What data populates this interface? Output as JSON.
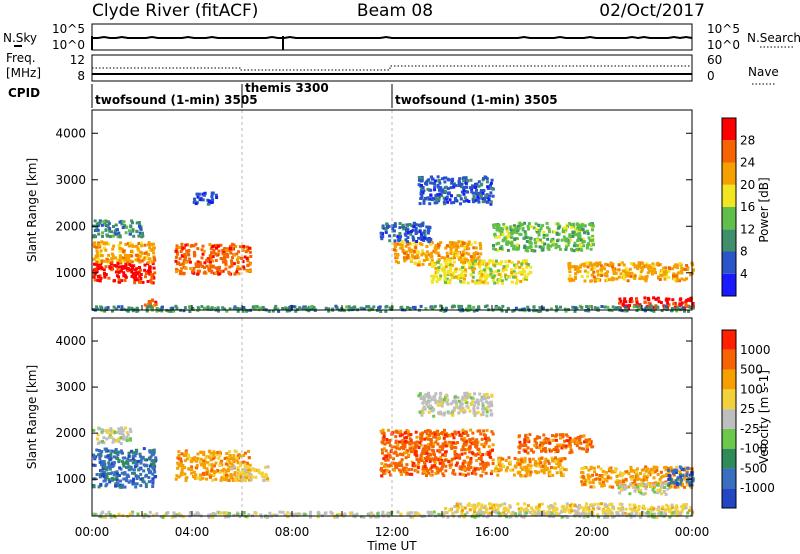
{
  "header": {
    "station": "Clyde River (fitACF)",
    "beam": "Beam 08",
    "date": "02/Oct/2017"
  },
  "nsky_panel": {
    "left_label": "N.Sky",
    "left_ticks": [
      "10^5",
      "10^0"
    ],
    "right_ticks": [
      "10^5",
      "10^0"
    ],
    "right_label": "N.Search"
  },
  "freq_panel": {
    "left_label_1": "Freq.",
    "left_label_2": "[MHz]",
    "left_ticks": [
      "12",
      "8"
    ],
    "right_ticks": [
      "60",
      "0"
    ],
    "right_label": "Nave"
  },
  "cpid": {
    "label": "CPID",
    "segments": [
      {
        "label": "twofsound (1-min) 3505",
        "start_hour": 0
      },
      {
        "label": "themis 3300",
        "start_hour": 6
      },
      {
        "label": "twofsound (1-min) 3505",
        "start_hour": 12
      }
    ]
  },
  "colors": {
    "power_scale": [
      "#1a1aff",
      "#2a55c8",
      "#3f8f6a",
      "#5fbf4a",
      "#f2e620",
      "#f5a000",
      "#f56400",
      "#ff0000"
    ],
    "velocity_scale": [
      "#2347c4",
      "#3a6fc0",
      "#2f8c5a",
      "#6cc84a",
      "#bebebe",
      "#f2d23a",
      "#f5a000",
      "#f56400",
      "#ff2000"
    ]
  },
  "chart_data": [
    {
      "type": "heatmap",
      "name": "power",
      "ylabel": "Slant Range [km]",
      "y_ticks": [
        1000,
        2000,
        3000,
        4000
      ],
      "ylim": [
        200,
        4500
      ],
      "xlim": [
        0,
        24
      ],
      "colorbar_label": "Power [dB]",
      "colorbar_ticks": [
        "4",
        "8",
        "12",
        "16",
        "20",
        "24",
        "28"
      ],
      "bands": [
        {
          "t0": 0.0,
          "t1": 2.5,
          "r0": 800,
          "r1": 1250,
          "level": 7
        },
        {
          "t0": 0.0,
          "t1": 2.5,
          "r0": 1250,
          "r1": 1700,
          "level": 5
        },
        {
          "t0": 0.0,
          "t1": 2.0,
          "r0": 1800,
          "r1": 2150,
          "level": 2
        },
        {
          "t0": 3.3,
          "t1": 6.3,
          "r0": 1000,
          "r1": 1650,
          "level": 6
        },
        {
          "t0": 2.0,
          "t1": 2.6,
          "r0": 250,
          "r1": 450,
          "level": 6
        },
        {
          "t0": 4.0,
          "t1": 5.0,
          "r0": 2500,
          "r1": 2750,
          "level": 1
        },
        {
          "t0": 12.0,
          "t1": 15.5,
          "r0": 1200,
          "r1": 1700,
          "level": 5
        },
        {
          "t0": 11.5,
          "t1": 13.5,
          "r0": 1700,
          "r1": 2100,
          "level": 1
        },
        {
          "t0": 13.5,
          "t1": 17.5,
          "r0": 800,
          "r1": 1300,
          "level": 4
        },
        {
          "t0": 16.0,
          "t1": 20.0,
          "r0": 1500,
          "r1": 2100,
          "level": 3
        },
        {
          "t0": 19.0,
          "t1": 24.0,
          "r0": 850,
          "r1": 1250,
          "level": 5
        },
        {
          "t0": 13.0,
          "t1": 16.0,
          "r0": 2500,
          "r1": 3100,
          "level": 1
        },
        {
          "t0": 21.0,
          "t1": 24.0,
          "r0": 250,
          "r1": 500,
          "level": 7
        },
        {
          "t0": 0.0,
          "t1": 24.0,
          "r0": 200,
          "r1": 320,
          "level": 2
        }
      ]
    },
    {
      "type": "heatmap",
      "name": "velocity",
      "ylabel": "Slant Range [km]",
      "xlabel": "Time UT",
      "x_ticks": [
        "00:00",
        "04:00",
        "08:00",
        "12:00",
        "16:00",
        "20:00",
        "00:00"
      ],
      "y_ticks": [
        1000,
        2000,
        3000,
        4000
      ],
      "ylim": [
        200,
        4500
      ],
      "xlim": [
        0,
        24
      ],
      "colorbar_label": "Velocity [m s-1]",
      "colorbar_ticks": [
        "1000",
        "500",
        "100",
        "25",
        "-25",
        "-100",
        "-500",
        "-1000"
      ],
      "bands": [
        {
          "t0": 0.0,
          "t1": 2.5,
          "r0": 850,
          "r1": 1700,
          "level": 1
        },
        {
          "t0": 0.0,
          "t1": 1.5,
          "r0": 1800,
          "r1": 2150,
          "level": 4
        },
        {
          "t0": 3.3,
          "t1": 6.3,
          "r0": 1000,
          "r1": 1650,
          "level": 6
        },
        {
          "t0": 5.5,
          "t1": 7.0,
          "r0": 1000,
          "r1": 1300,
          "level": 5
        },
        {
          "t0": 11.5,
          "t1": 16.0,
          "r0": 1100,
          "r1": 2100,
          "level": 7
        },
        {
          "t0": 16.0,
          "t1": 19.0,
          "r0": 1100,
          "r1": 1500,
          "level": 6
        },
        {
          "t0": 17.0,
          "t1": 20.0,
          "r0": 1600,
          "r1": 2000,
          "level": 7
        },
        {
          "t0": 19.5,
          "t1": 24.0,
          "r0": 850,
          "r1": 1300,
          "level": 6
        },
        {
          "t0": 21.0,
          "t1": 23.0,
          "r0": 700,
          "r1": 950,
          "level": 4
        },
        {
          "t0": 23.0,
          "t1": 24.0,
          "r0": 900,
          "r1": 1300,
          "level": 1
        },
        {
          "t0": 13.0,
          "t1": 16.0,
          "r0": 2400,
          "r1": 2900,
          "level": 4
        },
        {
          "t0": 14.0,
          "t1": 24.0,
          "r0": 250,
          "r1": 500,
          "level": 5
        },
        {
          "t0": 0.0,
          "t1": 24.0,
          "r0": 200,
          "r1": 320,
          "level": 4
        }
      ]
    }
  ]
}
